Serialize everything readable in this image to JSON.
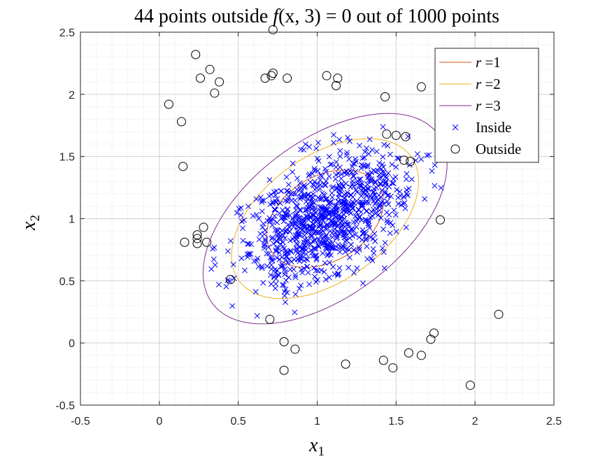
{
  "chart_data": {
    "type": "scatter",
    "title": "44 points outside f(x, 3) = 0 out of 1000 points",
    "title_parts": {
      "pre": "44 points outside ",
      "fn": "f",
      "args": "(x, 3) = 0",
      "post": " out of 1000 points"
    },
    "xlabel": {
      "base": "x",
      "sub": "1"
    },
    "ylabel": {
      "base": "x",
      "sub": "2"
    },
    "xlim": [
      -0.5,
      2.5
    ],
    "ylim": [
      -0.5,
      2.5
    ],
    "xticks": [
      -0.5,
      0,
      0.5,
      1,
      1.5,
      2,
      2.5
    ],
    "yticks": [
      -0.5,
      0,
      0.5,
      1,
      1.5,
      2,
      2.5
    ],
    "xtick_labels": [
      "-0.5",
      "0",
      "0.5",
      "1",
      "1.5",
      "2",
      "2.5"
    ],
    "ytick_labels": [
      "-0.5",
      "0",
      "0.5",
      "1",
      "1.5",
      "2",
      "2.5"
    ],
    "grid": true,
    "minor_grid": true,
    "legend_position": "top-right",
    "ellipse_center": [
      1.05,
      1.0
    ],
    "ellipses": [
      {
        "r": 1,
        "color": "#D95319",
        "semi_axes": [
          0.31,
          0.44
        ],
        "angle_deg": -40
      },
      {
        "r": 2,
        "color": "#EDB120",
        "semi_axes": [
          0.45,
          0.75
        ],
        "angle_deg": -40
      },
      {
        "r": 3,
        "color": "#7E2F8E",
        "semi_axes": [
          0.56,
          1.0
        ],
        "angle_deg": -40
      }
    ],
    "inside_count": 956,
    "inside_color": "#0000FF",
    "outside_color": "#000000",
    "outside_points": [
      [
        0.72,
        2.52
      ],
      [
        0.23,
        2.32
      ],
      [
        0.32,
        2.2
      ],
      [
        0.71,
        2.15
      ],
      [
        0.72,
        2.17
      ],
      [
        0.67,
        2.13
      ],
      [
        0.81,
        2.13
      ],
      [
        1.06,
        2.15
      ],
      [
        1.13,
        2.13
      ],
      [
        1.12,
        2.07
      ],
      [
        0.26,
        2.13
      ],
      [
        0.38,
        2.1
      ],
      [
        0.35,
        2.01
      ],
      [
        0.06,
        1.92
      ],
      [
        0.14,
        1.78
      ],
      [
        1.43,
        1.98
      ],
      [
        1.66,
        2.06
      ],
      [
        1.44,
        1.68
      ],
      [
        1.5,
        1.67
      ],
      [
        1.56,
        1.66
      ],
      [
        1.55,
        1.47
      ],
      [
        1.59,
        1.46
      ],
      [
        0.15,
        1.42
      ],
      [
        1.78,
        0.99
      ],
      [
        0.28,
        0.93
      ],
      [
        0.24,
        0.87
      ],
      [
        0.24,
        0.84
      ],
      [
        0.24,
        0.8
      ],
      [
        0.3,
        0.81
      ],
      [
        0.16,
        0.81
      ],
      [
        0.45,
        0.51
      ],
      [
        0.7,
        0.19
      ],
      [
        0.79,
        0.01
      ],
      [
        0.86,
        -0.05
      ],
      [
        0.79,
        -0.22
      ],
      [
        1.18,
        -0.17
      ],
      [
        1.42,
        -0.14
      ],
      [
        1.48,
        -0.2
      ],
      [
        1.58,
        -0.08
      ],
      [
        1.66,
        -0.1
      ],
      [
        1.74,
        0.08
      ],
      [
        1.72,
        0.03
      ],
      [
        2.15,
        0.23
      ],
      [
        1.97,
        -0.34
      ]
    ],
    "legend": [
      {
        "kind": "line",
        "label": "r =1",
        "color": "#D95319"
      },
      {
        "kind": "line",
        "label": "r =2",
        "color": "#EDB120"
      },
      {
        "kind": "line",
        "label": "r =3",
        "color": "#7E2F8E"
      },
      {
        "kind": "marker-x",
        "label": "Inside",
        "color": "#0000FF"
      },
      {
        "kind": "marker-o",
        "label": "Outside",
        "color": "#000000"
      }
    ]
  }
}
